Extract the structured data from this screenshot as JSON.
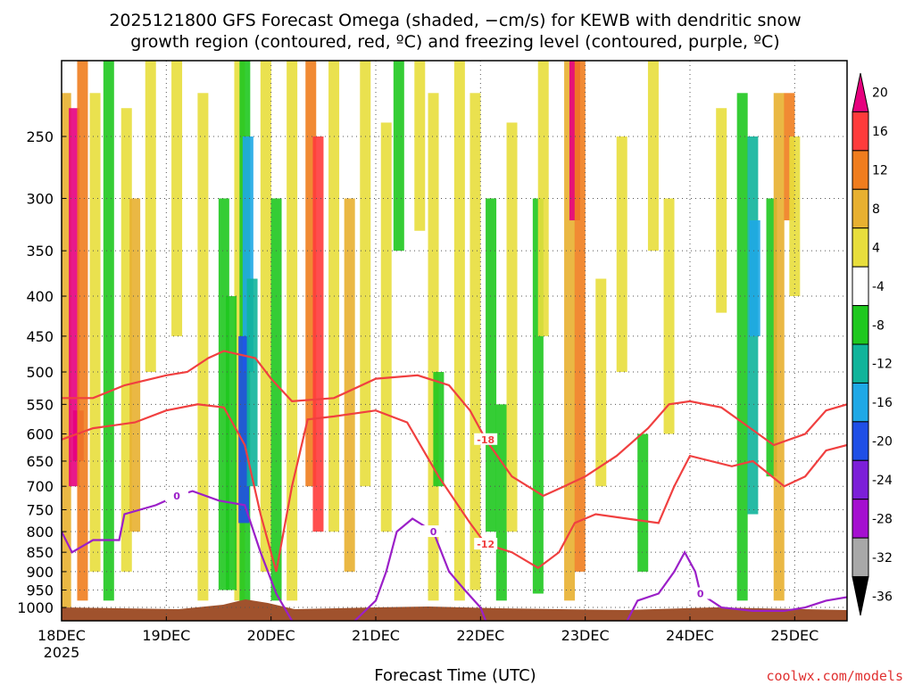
{
  "chart_data": {
    "type": "heatmap",
    "title_line1": "2025121800 GFS Forecast Omega (shaded, −cm/s) for KEWB with dendritic snow",
    "title_line2": "growth region (contoured, red, ºC) and freezing level (contoured, purple, ºC)",
    "xlabel": "Forecast Time (UTC)",
    "credit": "coolwx.com/models",
    "x_ticks": [
      "18DEC",
      "19DEC",
      "20DEC",
      "21DEC",
      "22DEC",
      "23DEC",
      "24DEC",
      "25DEC"
    ],
    "x_year": "2025",
    "x_range_days": [
      0,
      7.5
    ],
    "y_ticks": [
      250,
      300,
      350,
      400,
      450,
      500,
      550,
      600,
      650,
      700,
      750,
      800,
      850,
      900,
      950,
      1000
    ],
    "y_range_hpa": [
      200,
      1040
    ],
    "y_scale": "log-pressure",
    "grid": "dotted",
    "colorbar": {
      "labels": [
        20,
        16,
        12,
        8,
        4,
        -4,
        -8,
        -12,
        -16,
        -20,
        -24,
        -28,
        -32,
        -36
      ],
      "colors": [
        "#e6007e",
        "#ff3b3b",
        "#f07d1e",
        "#e8b030",
        "#e8de3c",
        "#ffffff",
        "#1fc81f",
        "#10b49b",
        "#1fa8e6",
        "#1f4fe6",
        "#7c1fd8",
        "#a50fd0",
        "#a8a8a8",
        "#000000"
      ]
    },
    "omega_columns": [
      {
        "x": 0.04,
        "p0": 220,
        "p1": 1000,
        "v": 8
      },
      {
        "x": 0.12,
        "p0": 230,
        "p1": 700,
        "v": 20
      },
      {
        "x": 0.16,
        "p0": 560,
        "p1": 650,
        "v": 20
      },
      {
        "x": 0.2,
        "p0": 200,
        "p1": 980,
        "v": 12
      },
      {
        "x": 0.32,
        "p0": 220,
        "p1": 900,
        "v": 4
      },
      {
        "x": 0.45,
        "p0": 200,
        "p1": 980,
        "v": -8
      },
      {
        "x": 0.62,
        "p0": 230,
        "p1": 900,
        "v": 4
      },
      {
        "x": 0.7,
        "p0": 300,
        "p1": 800,
        "v": 8
      },
      {
        "x": 0.85,
        "p0": 200,
        "p1": 500,
        "v": 4
      },
      {
        "x": 1.1,
        "p0": 200,
        "p1": 450,
        "v": 4
      },
      {
        "x": 1.35,
        "p0": 220,
        "p1": 980,
        "v": 4
      },
      {
        "x": 1.55,
        "p0": 300,
        "p1": 950,
        "v": -8
      },
      {
        "x": 1.7,
        "p0": 200,
        "p1": 980,
        "v": 4
      },
      {
        "x": 1.62,
        "p0": 400,
        "p1": 950,
        "v": -8
      },
      {
        "x": 1.75,
        "p0": 200,
        "p1": 1000,
        "v": -8
      },
      {
        "x": 1.78,
        "p0": 250,
        "p1": 500,
        "v": -16
      },
      {
        "x": 1.74,
        "p0": 450,
        "p1": 780,
        "v": -20
      },
      {
        "x": 1.82,
        "p0": 380,
        "p1": 700,
        "v": -12
      },
      {
        "x": 1.95,
        "p0": 200,
        "p1": 900,
        "v": 4
      },
      {
        "x": 2.05,
        "p0": 300,
        "p1": 980,
        "v": -8
      },
      {
        "x": 2.2,
        "p0": 200,
        "p1": 980,
        "v": 4
      },
      {
        "x": 2.38,
        "p0": 200,
        "p1": 700,
        "v": 12
      },
      {
        "x": 2.45,
        "p0": 250,
        "p1": 800,
        "v": 16
      },
      {
        "x": 2.6,
        "p0": 200,
        "p1": 800,
        "v": 4
      },
      {
        "x": 2.75,
        "p0": 300,
        "p1": 900,
        "v": 8
      },
      {
        "x": 2.9,
        "p0": 200,
        "p1": 700,
        "v": 4
      },
      {
        "x": 3.1,
        "p0": 240,
        "p1": 800,
        "v": 4
      },
      {
        "x": 3.22,
        "p0": 200,
        "p1": 350,
        "v": -8
      },
      {
        "x": 3.42,
        "p0": 200,
        "p1": 330,
        "v": 4
      },
      {
        "x": 3.55,
        "p0": 220,
        "p1": 980,
        "v": 4
      },
      {
        "x": 3.6,
        "p0": 500,
        "p1": 700,
        "v": -8
      },
      {
        "x": 3.8,
        "p0": 200,
        "p1": 980,
        "v": 4
      },
      {
        "x": 3.95,
        "p0": 220,
        "p1": 950,
        "v": 4
      },
      {
        "x": 4.1,
        "p0": 300,
        "p1": 800,
        "v": -8
      },
      {
        "x": 4.2,
        "p0": 550,
        "p1": 980,
        "v": -8
      },
      {
        "x": 4.3,
        "p0": 240,
        "p1": 800,
        "v": 4
      },
      {
        "x": 4.55,
        "p0": 300,
        "p1": 960,
        "v": -8
      },
      {
        "x": 4.6,
        "p0": 200,
        "p1": 450,
        "v": 4
      },
      {
        "x": 4.85,
        "p0": 200,
        "p1": 980,
        "v": 8
      },
      {
        "x": 4.9,
        "p0": 200,
        "p1": 320,
        "v": 20
      },
      {
        "x": 4.95,
        "p0": 200,
        "p1": 900,
        "v": 12
      },
      {
        "x": 5.15,
        "p0": 380,
        "p1": 700,
        "v": 4
      },
      {
        "x": 5.35,
        "p0": 250,
        "p1": 500,
        "v": 4
      },
      {
        "x": 5.55,
        "p0": 600,
        "p1": 900,
        "v": -8
      },
      {
        "x": 5.65,
        "p0": 200,
        "p1": 350,
        "v": 4
      },
      {
        "x": 5.8,
        "p0": 300,
        "p1": 600,
        "v": 4
      },
      {
        "x": 6.3,
        "p0": 230,
        "p1": 420,
        "v": 4
      },
      {
        "x": 6.5,
        "p0": 220,
        "p1": 980,
        "v": -8
      },
      {
        "x": 6.6,
        "p0": 250,
        "p1": 760,
        "v": -12
      },
      {
        "x": 6.62,
        "p0": 320,
        "p1": 450,
        "v": -16
      },
      {
        "x": 6.78,
        "p0": 300,
        "p1": 680,
        "v": -8
      },
      {
        "x": 6.85,
        "p0": 220,
        "p1": 980,
        "v": 8
      },
      {
        "x": 6.95,
        "p0": 220,
        "p1": 320,
        "v": 12
      },
      {
        "x": 7.0,
        "p0": 250,
        "p1": 400,
        "v": 4
      }
    ],
    "contours": [
      {
        "name": "-18",
        "color": "#f04040",
        "points": [
          [
            0,
            540
          ],
          [
            0.3,
            540
          ],
          [
            0.6,
            520
          ],
          [
            1.0,
            505
          ],
          [
            1.2,
            500
          ],
          [
            1.4,
            480
          ],
          [
            1.55,
            470
          ],
          [
            1.85,
            480
          ],
          [
            2.0,
            510
          ],
          [
            2.2,
            545
          ],
          [
            2.6,
            540
          ],
          [
            3.0,
            510
          ],
          [
            3.4,
            505
          ],
          [
            3.7,
            520
          ],
          [
            3.9,
            560
          ],
          [
            4.05,
            610
          ],
          [
            4.3,
            680
          ],
          [
            4.6,
            720
          ],
          [
            4.8,
            700
          ],
          [
            5.0,
            680
          ],
          [
            5.3,
            640
          ],
          [
            5.6,
            590
          ],
          [
            5.8,
            550
          ],
          [
            6.0,
            545
          ],
          [
            6.3,
            555
          ],
          [
            6.5,
            580
          ],
          [
            6.8,
            620
          ],
          [
            7.1,
            600
          ],
          [
            7.3,
            560
          ],
          [
            7.5,
            550
          ]
        ]
      },
      {
        "name": "-12",
        "color": "#f04040",
        "points": [
          [
            0,
            610
          ],
          [
            0.3,
            590
          ],
          [
            0.7,
            580
          ],
          [
            1.0,
            560
          ],
          [
            1.3,
            550
          ],
          [
            1.55,
            555
          ],
          [
            1.75,
            620
          ],
          [
            1.9,
            760
          ],
          [
            2.05,
            900
          ],
          [
            2.2,
            700
          ],
          [
            2.35,
            575
          ],
          [
            2.6,
            570
          ],
          [
            3.0,
            560
          ],
          [
            3.3,
            580
          ],
          [
            3.6,
            680
          ],
          [
            3.9,
            780
          ],
          [
            4.05,
            830
          ],
          [
            4.3,
            850
          ],
          [
            4.55,
            890
          ],
          [
            4.75,
            850
          ],
          [
            4.9,
            780
          ],
          [
            5.1,
            760
          ],
          [
            5.4,
            770
          ],
          [
            5.7,
            780
          ],
          [
            5.85,
            700
          ],
          [
            6.0,
            640
          ],
          [
            6.4,
            660
          ],
          [
            6.6,
            650
          ],
          [
            6.9,
            700
          ],
          [
            7.1,
            680
          ],
          [
            7.3,
            630
          ],
          [
            7.5,
            620
          ]
        ]
      },
      {
        "name": "0",
        "color": "#9b1fc8",
        "points": [
          [
            0,
            800
          ],
          [
            0.1,
            850
          ],
          [
            0.3,
            820
          ],
          [
            0.55,
            820
          ],
          [
            0.6,
            760
          ],
          [
            0.9,
            740
          ],
          [
            1.1,
            720
          ],
          [
            1.25,
            710
          ],
          [
            1.5,
            730
          ],
          [
            1.75,
            740
          ],
          [
            1.9,
            850
          ],
          [
            2.05,
            960
          ],
          [
            2.2,
            1040
          ]
        ]
      },
      {
        "name": "0",
        "color": "#9b1fc8",
        "points": [
          [
            2.8,
            1040
          ],
          [
            3.0,
            980
          ],
          [
            3.1,
            900
          ],
          [
            3.2,
            800
          ],
          [
            3.35,
            770
          ],
          [
            3.55,
            800
          ],
          [
            3.7,
            900
          ],
          [
            3.85,
            950
          ],
          [
            4.0,
            1000
          ],
          [
            4.05,
            1040
          ]
        ]
      },
      {
        "name": "0",
        "color": "#9b1fc8",
        "points": [
          [
            5.4,
            1040
          ],
          [
            5.5,
            980
          ],
          [
            5.7,
            960
          ],
          [
            5.85,
            900
          ],
          [
            5.95,
            850
          ],
          [
            6.05,
            900
          ],
          [
            6.1,
            960
          ],
          [
            6.3,
            1000
          ],
          [
            6.6,
            1010
          ],
          [
            6.9,
            1010
          ],
          [
            7.1,
            1000
          ],
          [
            7.3,
            980
          ],
          [
            7.5,
            970
          ]
        ]
      }
    ]
  }
}
